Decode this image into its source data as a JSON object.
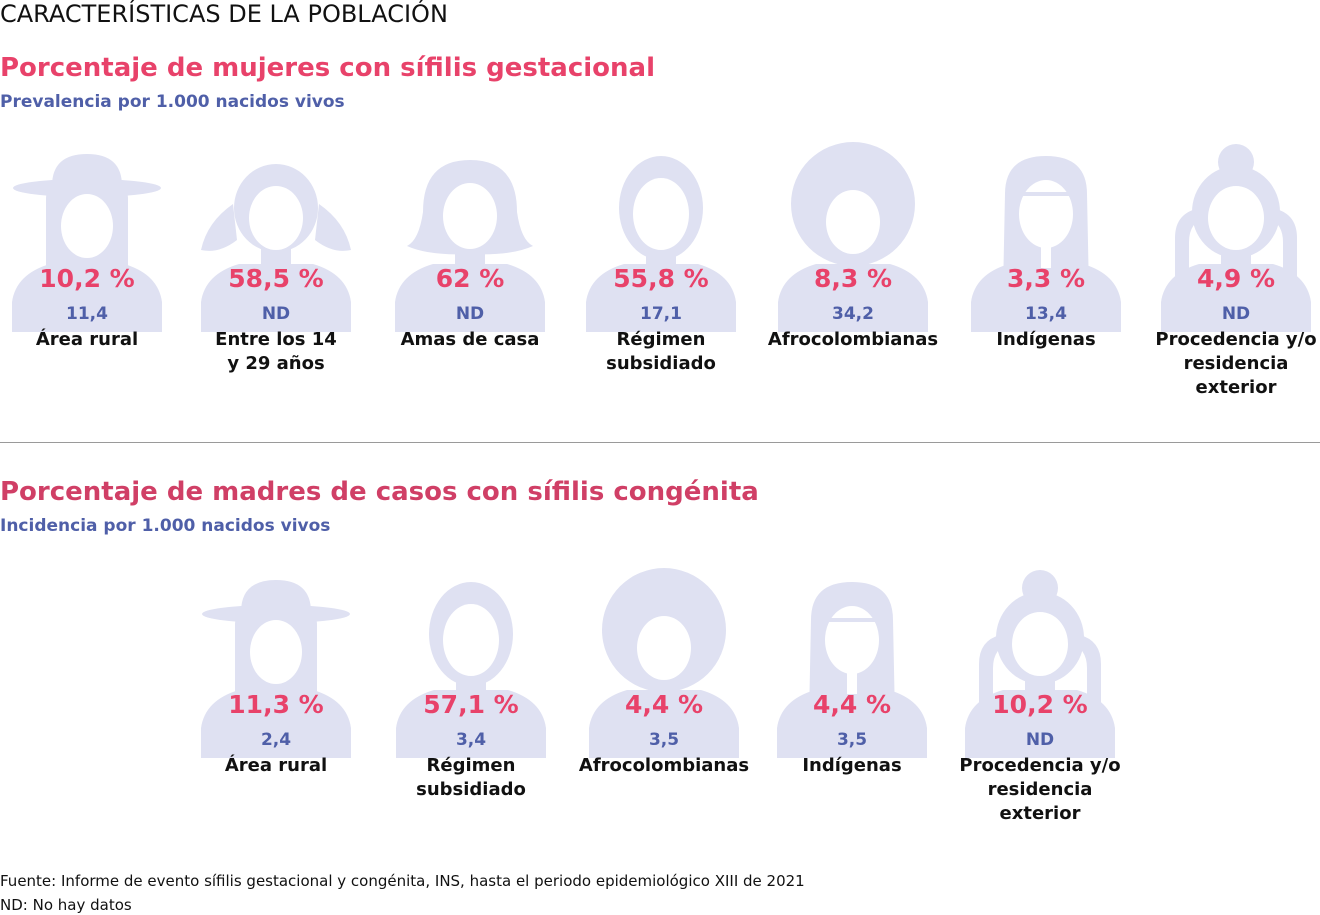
{
  "header": {
    "title": "CARACTERÍSTICAS DE LA POBLACIÓN"
  },
  "colors": {
    "accent": "#e8426a",
    "secondary": "#4f5fa8",
    "silhouette": "#dfe1f2"
  },
  "gestational": {
    "title": "Porcentaje de mujeres con sífilis gestacional",
    "subtitle": "Prevalencia por 1.000 nacidos vivos",
    "items": [
      {
        "icon": "woman-hat-icon",
        "percent": "10,2 %",
        "rate": "11,4",
        "label": "Área rural"
      },
      {
        "icon": "girl-pigtails-icon",
        "percent": "58,5 %",
        "rate": "ND",
        "label": "Entre los 14\ny 29 años"
      },
      {
        "icon": "woman-short-hair-icon",
        "percent": "62 %",
        "rate": "ND",
        "label": "Amas de casa"
      },
      {
        "icon": "woman-head-icon",
        "percent": "55,8 %",
        "rate": "17,1",
        "label": "Régimen\nsubsidiado"
      },
      {
        "icon": "woman-afro-icon",
        "percent": "8,3 %",
        "rate": "34,2",
        "label": "Afrocolombianas"
      },
      {
        "icon": "woman-indigenous-icon",
        "percent": "3,3 %",
        "rate": "13,4",
        "label": "Indígenas"
      },
      {
        "icon": "woman-traveler-icon",
        "percent": "4,9 %",
        "rate": "ND",
        "label": "Procedencia y/o\nresidencia\nexterior"
      }
    ]
  },
  "congenital": {
    "title": "Porcentaje de madres de casos con sífilis congénita",
    "subtitle": "Incidencia por 1.000 nacidos vivos",
    "items": [
      {
        "icon": "woman-hat-icon",
        "percent": "11,3 %",
        "rate": "2,4",
        "label": "Área rural"
      },
      {
        "icon": "woman-head-icon",
        "percent": "57,1 %",
        "rate": "3,4",
        "label": "Régimen\nsubsidiado"
      },
      {
        "icon": "woman-afro-icon",
        "percent": "4,4 %",
        "rate": "3,5",
        "label": "Afrocolombianas"
      },
      {
        "icon": "woman-indigenous-icon",
        "percent": "4,4 %",
        "rate": "3,5",
        "label": "Indígenas"
      },
      {
        "icon": "woman-traveler-icon",
        "percent": "10,2 %",
        "rate": "ND",
        "label": "Procedencia y/o\nresidencia\nexterior"
      }
    ]
  },
  "footer": {
    "source": "Fuente: Informe de evento sífilis gestacional y congénita, INS, hasta el periodo epidemiológico XIII de 2021",
    "note": "ND: No hay datos"
  }
}
